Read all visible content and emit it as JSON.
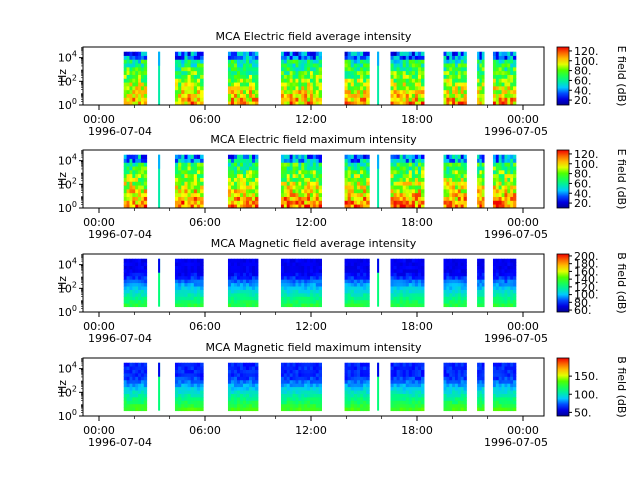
{
  "chart_data": [
    {
      "type": "heatmap",
      "title": "MCA  Electric field average intensity",
      "ylabel": "Hz",
      "y_scale": "log",
      "y_tick_labels": [
        "10^0",
        "10^2",
        "10^4"
      ],
      "y_tick_values": [
        1,
        100,
        10000
      ],
      "x_tick_labels": [
        "00:00",
        "06:00",
        "12:00",
        "18:00",
        "00:00"
      ],
      "x_date_start": "1996-07-04",
      "x_date_end": "1996-07-05",
      "colorbar": {
        "label": "E field (dB)",
        "ticks": [
          20,
          40,
          60,
          80,
          100,
          120
        ],
        "tick_labels": [
          "20.",
          "40.",
          "60.",
          "80.",
          "100.",
          "120."
        ],
        "range": [
          10,
          128
        ]
      },
      "palette": "rainbow",
      "data_blocks_hours": [
        [
          1.4,
          2.7
        ],
        [
          4.3,
          5.9
        ],
        [
          7.3,
          9.0
        ],
        [
          10.3,
          12.6
        ],
        [
          13.9,
          15.3
        ],
        [
          16.5,
          18.4
        ],
        [
          19.5,
          20.8
        ],
        [
          21.4,
          21.8
        ],
        [
          22.3,
          23.6
        ]
      ],
      "spikes_hours": [
        3.4,
        15.8
      ]
    },
    {
      "type": "heatmap",
      "title": "MCA  Electric field maximum intensity",
      "ylabel": "Hz",
      "y_scale": "log",
      "y_tick_labels": [
        "10^0",
        "10^2",
        "10^4"
      ],
      "y_tick_values": [
        1,
        100,
        10000
      ],
      "x_tick_labels": [
        "00:00",
        "06:00",
        "12:00",
        "18:00",
        "00:00"
      ],
      "x_date_start": "1996-07-04",
      "x_date_end": "1996-07-05",
      "colorbar": {
        "label": "E field (dB)",
        "ticks": [
          20,
          40,
          60,
          80,
          100,
          120
        ],
        "tick_labels": [
          "20.",
          "40.",
          "60.",
          "80.",
          "100.",
          "120."
        ],
        "range": [
          10,
          128
        ]
      },
      "palette": "rainbow",
      "data_blocks_hours": [
        [
          1.4,
          2.7
        ],
        [
          4.3,
          5.9
        ],
        [
          7.3,
          9.0
        ],
        [
          10.3,
          12.6
        ],
        [
          13.9,
          15.3
        ],
        [
          16.5,
          18.4
        ],
        [
          19.5,
          20.8
        ],
        [
          21.4,
          21.8
        ],
        [
          22.3,
          23.6
        ]
      ],
      "spikes_hours": [
        3.4,
        15.8
      ]
    },
    {
      "type": "heatmap",
      "title": "MCA  Magnetic field average intensity",
      "ylabel": "Hz",
      "y_scale": "log",
      "y_tick_labels": [
        "10^0",
        "10^2",
        "10^4"
      ],
      "y_tick_values": [
        1,
        100,
        10000
      ],
      "x_tick_labels": [
        "00:00",
        "06:00",
        "12:00",
        "18:00",
        "00:00"
      ],
      "x_date_start": "1996-07-04",
      "x_date_end": "1996-07-05",
      "colorbar": {
        "label": "B field (dB)",
        "ticks": [
          60,
          80,
          100,
          120,
          140,
          160,
          180,
          200
        ],
        "tick_labels": [
          "60.",
          "80.",
          "100.",
          "120.",
          "140.",
          "160.",
          "180.",
          "200."
        ],
        "range": [
          55,
          205
        ]
      },
      "palette": "rainbow",
      "data_blocks_hours": [
        [
          1.4,
          2.7
        ],
        [
          4.3,
          5.9
        ],
        [
          7.3,
          9.0
        ],
        [
          10.3,
          12.6
        ],
        [
          13.9,
          15.3
        ],
        [
          16.5,
          18.4
        ],
        [
          19.5,
          20.8
        ],
        [
          21.4,
          21.8
        ],
        [
          22.3,
          23.6
        ]
      ],
      "spikes_hours": [
        3.4,
        15.8
      ]
    },
    {
      "type": "heatmap",
      "title": "MCA  Magnetic field maximum intensity",
      "ylabel": "Hz",
      "y_scale": "log",
      "y_tick_labels": [
        "10^0",
        "10^2",
        "10^4"
      ],
      "y_tick_values": [
        1,
        100,
        10000
      ],
      "x_tick_labels": [
        "00:00",
        "06:00",
        "12:00",
        "18:00",
        "00:00"
      ],
      "x_date_start": "1996-07-04",
      "x_date_end": "1996-07-05",
      "colorbar": {
        "label": "B field (dB)",
        "ticks": [
          50,
          100,
          150
        ],
        "tick_labels": [
          "50.",
          "100.",
          "150."
        ],
        "range": [
          40,
          200
        ]
      },
      "palette": "rainbow",
      "data_blocks_hours": [
        [
          1.4,
          2.7
        ],
        [
          4.3,
          5.9
        ],
        [
          7.3,
          9.0
        ],
        [
          10.3,
          12.6
        ],
        [
          13.9,
          15.3
        ],
        [
          16.5,
          18.4
        ],
        [
          19.5,
          20.8
        ],
        [
          21.4,
          21.8
        ],
        [
          22.3,
          23.6
        ]
      ],
      "spikes_hours": [
        3.4,
        15.8
      ]
    }
  ]
}
